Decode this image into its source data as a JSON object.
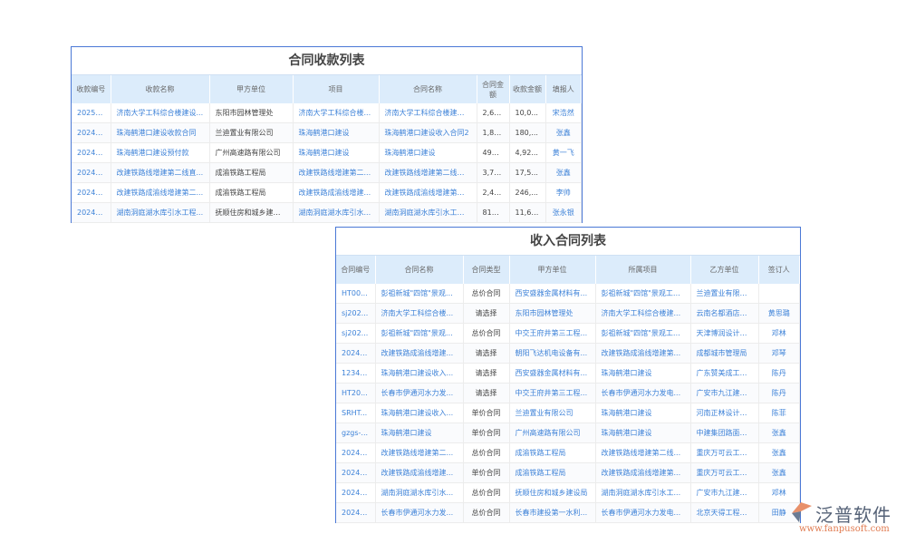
{
  "receipts": {
    "title": "合同收款列表",
    "headers": [
      "收款编号",
      "收款名称",
      "甲方单位",
      "项目",
      "合同名称",
      "合同金额",
      "收款金额",
      "填报人"
    ],
    "rows": [
      [
        "202502...",
        "济南大学工科综合楼建设...",
        "东阳市园林管理处",
        "济南大学工科综合楼...",
        "济南大学工科综合楼建设...",
        "2,64...",
        "10,0...",
        "宋浩然"
      ],
      [
        "202411...",
        "珠海鹤港口建设收款合同",
        "兰迪置业有限公司",
        "珠海鹤港口建设",
        "珠海鹤港口建设收入合同2",
        "1,89...",
        "180,...",
        "张鑫"
      ],
      [
        "202408...",
        "珠海鹤港口建设预付款",
        "广州高速路有限公司",
        "珠海鹤港口建设",
        "珠海鹤港口建设",
        "492,...",
        "4,92...",
        "黄一飞"
      ],
      [
        "202409...",
        "改建铁路线增建第二线直...",
        "成渝铁路工程局",
        "改建铁路线增建第二...",
        "改建铁路线增建第二线直...",
        "3,75...",
        "17,5...",
        "张鑫"
      ],
      [
        "202409...",
        "改建铁路成渝线增建第二...",
        "成渝铁路工程局",
        "改建铁路成渝线增建...",
        "改建铁路成渝线增建第二...",
        "2,46...",
        "246,...",
        "李帅"
      ],
      [
        "202408...",
        "湖南洞庭湖水库引水工程...",
        "抚顺住房和城乡建设局",
        "湖南洞庭湖水库引水...",
        "湖南洞庭湖水库引水工程...",
        "816,...",
        "11,66...",
        "张永银"
      ]
    ]
  },
  "contracts": {
    "title": "收入合同列表",
    "headers": [
      "合同编号",
      "合同名称",
      "合同类型",
      "甲方单位",
      "所属项目",
      "乙方单位",
      "签订人"
    ],
    "rows": [
      [
        "HT00...",
        "彭祖新城\"四馆\"景观工...",
        "总价合同",
        "西安盛器金属材料有...",
        "彭祖新城\"四馆\"景观工程...",
        "兰迪置业有限公司",
        ""
      ],
      [
        "sj202...",
        "济南大学工科综合楼...",
        "请选择",
        "东阳市园林管理处",
        "济南大学工科综合楼建...",
        "云南名都酒店管...",
        "黄思璐"
      ],
      [
        "sj202...",
        "彭祖新城\"四馆\"景观工...",
        "总价合同",
        "中交王府井第三工程...",
        "彭祖新城\"四馆\"景观工程...",
        "天津博润设计管...",
        "邓林"
      ],
      [
        "20240...",
        "改建铁路成渝线增建...",
        "请选择",
        "朝阳飞达机电设备有...",
        "改建铁路成渝线增建第...",
        "成都城市管理局",
        "邓琴"
      ],
      [
        "12345...",
        "珠海鹤港口建设收入...",
        "请选择",
        "西安盛器金属材料有...",
        "珠海鹤港口建设",
        "广东赞美成工程...",
        "陈丹"
      ],
      [
        "HT20...",
        "长春市伊通河水力发...",
        "请选择",
        "中交王府井第三工程...",
        "长春市伊通河水力发电...",
        "广安市九江建设...",
        "陈丹"
      ],
      [
        "SRHT...",
        "珠海鹤港口建设收入...",
        "单价合同",
        "兰迪置业有限公司",
        "珠海鹤港口建设",
        "河南正林设计工...",
        "陈菲"
      ],
      [
        "gzgs-...",
        "珠海鹤港口建设",
        "单价合同",
        "广州高速路有限公司",
        "珠海鹤港口建设",
        "中建集团路面工...",
        "张鑫"
      ],
      [
        "20240...",
        "改建铁路线增建第二...",
        "总价合同",
        "成渝铁路工程局",
        "改建铁路线增建第二线...",
        "重庆万可云工程...",
        "张鑫"
      ],
      [
        "20240...",
        "改建铁路成渝线增建...",
        "单价合同",
        "成渝铁路工程局",
        "改建铁路成渝线增建第...",
        "重庆万可云工程...",
        "张鑫"
      ],
      [
        "20240...",
        "湖南洞庭湖水库引水...",
        "总价合同",
        "抚顺住房和城乡建设局",
        "湖南洞庭湖水库引水工...",
        "广安市九江建设...",
        "邓林"
      ],
      [
        "20240...",
        "长春市伊通河水力发...",
        "总价合同",
        "长春市建投第一水利...",
        "长春市伊通河水力发电...",
        "北京天得工程有...",
        "田静"
      ]
    ]
  },
  "logo": {
    "cn": "泛普软件",
    "en": "www.fanpusoft.com"
  },
  "colors": {
    "link": "#3d82d8",
    "header_bg": "#dcecfb",
    "border": "#4a78d6"
  }
}
